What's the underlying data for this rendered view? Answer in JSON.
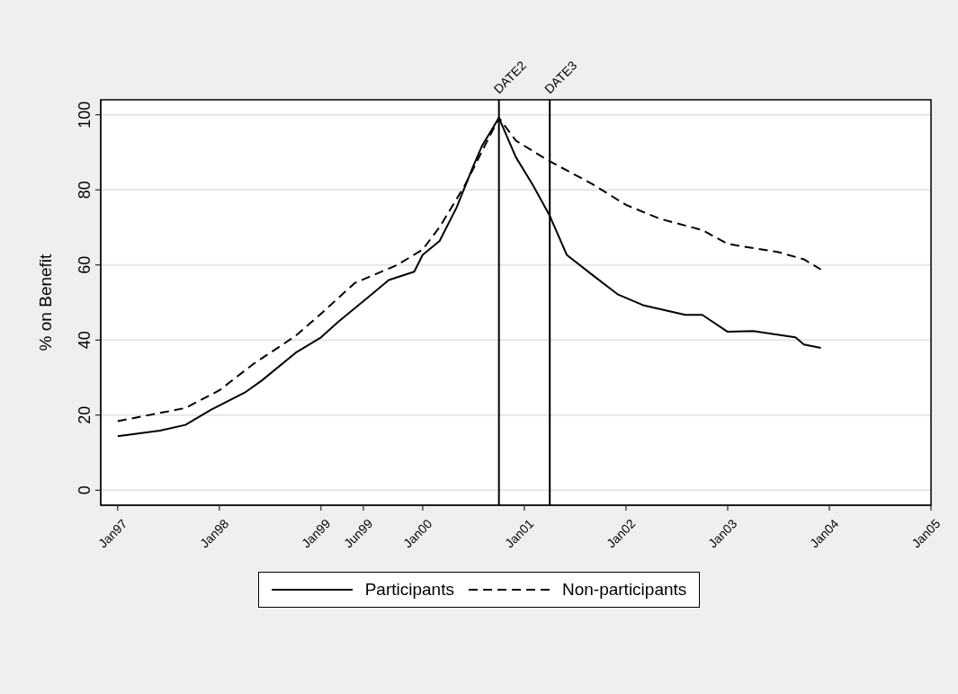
{
  "chart_data": {
    "type": "line",
    "ylabel": "% on Benefit",
    "xlim": [
      "1996-11",
      "2005-01"
    ],
    "xticks": [
      {
        "value": "1997-01",
        "label": "Jan97"
      },
      {
        "value": "1998-01",
        "label": "Jan98"
      },
      {
        "value": "1999-01",
        "label": "Jan99"
      },
      {
        "value": "1999-06",
        "label": "Jun99"
      },
      {
        "value": "2000-01",
        "label": "Jan00"
      },
      {
        "value": "2001-01",
        "label": "Jan01"
      },
      {
        "value": "2002-01",
        "label": "Jan02"
      },
      {
        "value": "2003-01",
        "label": "Jan03"
      },
      {
        "value": "2004-01",
        "label": "Jan04"
      },
      {
        "value": "2005-01",
        "label": "Jan05"
      }
    ],
    "ylim": [
      -4,
      104
    ],
    "yticks": [
      0,
      20,
      40,
      60,
      80,
      100
    ],
    "grid": "y",
    "legend": "bottom",
    "ref_lines": [
      {
        "axis": "x",
        "value": "2000-10",
        "label": "DATE2",
        "color": "#000000"
      },
      {
        "axis": "x",
        "value": "2001-04",
        "label": "DATE3",
        "color": "#000000"
      }
    ],
    "series": [
      {
        "name": "Participants",
        "color": "#000000",
        "line_style": "solid",
        "x": [
          "1997-01",
          "1997-06",
          "1997-09",
          "1997-12",
          "1998-04",
          "1998-06",
          "1998-10",
          "1999-01",
          "1999-03",
          "1999-07",
          "1999-09",
          "1999-12",
          "2000-01",
          "2000-03",
          "2000-05",
          "2000-07",
          "2000-08",
          "2000-10",
          "2000-12",
          "2001-02",
          "2001-04",
          "2001-06",
          "2001-09",
          "2001-12",
          "2002-03",
          "2002-08",
          "2002-10",
          "2003-01",
          "2003-04",
          "2003-09",
          "2003-10",
          "2003-12"
        ],
        "values": [
          14.4,
          15.9,
          17.4,
          21.4,
          26.0,
          29.2,
          36.6,
          40.7,
          44.8,
          52.2,
          56.0,
          58.2,
          62.7,
          66.4,
          75.3,
          86.5,
          91.7,
          99.2,
          88.7,
          81.3,
          73.1,
          62.7,
          57.4,
          52.2,
          49.3,
          46.7,
          46.7,
          42.2,
          42.4,
          40.7,
          38.8,
          37.9
        ]
      },
      {
        "name": "Non-participants",
        "color": "#000000",
        "line_style": "dashed",
        "x": [
          "1997-01",
          "1997-09",
          "1998-01",
          "1998-05",
          "1998-10",
          "1999-01",
          "1999-05",
          "1999-10",
          "2000-01",
          "2000-03",
          "2000-06",
          "2000-10",
          "2000-12",
          "2001-04",
          "2001-09",
          "2002-01",
          "2002-05",
          "2002-10",
          "2003-01",
          "2003-07",
          "2003-10",
          "2003-12"
        ],
        "values": [
          18.4,
          21.9,
          26.6,
          33.6,
          41.1,
          47.0,
          55.2,
          60.0,
          64.1,
          70.1,
          81.3,
          99.2,
          93.1,
          87.6,
          81.6,
          76.0,
          72.3,
          69.3,
          65.6,
          63.4,
          61.5,
          58.8
        ]
      }
    ]
  }
}
